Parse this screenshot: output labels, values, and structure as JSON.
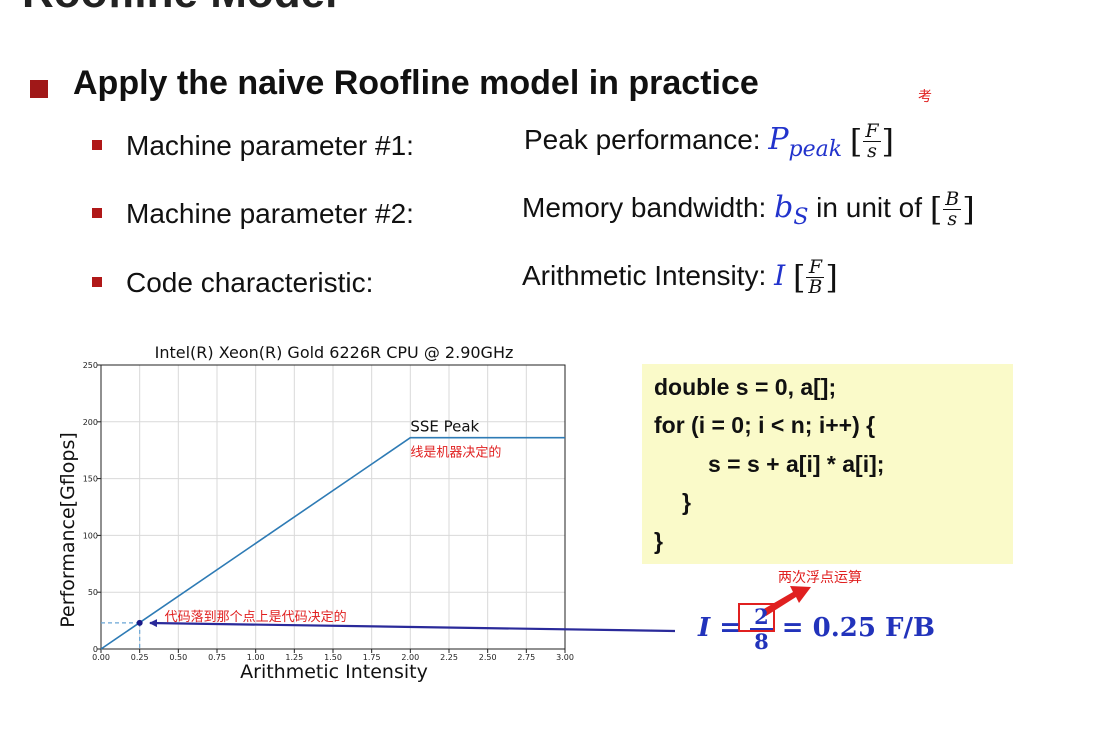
{
  "slide": {
    "title_fragment": "Roofline Model",
    "heading": "Apply the naive Roofline model in practice",
    "kao_mark": "考"
  },
  "params": [
    {
      "label": "Machine parameter #1:",
      "desc_prefix": "Peak performance: ",
      "symbol_base": "P",
      "symbol_sub": "peak",
      "unit_num": "F",
      "unit_den": "s",
      "desc_mid": " "
    },
    {
      "label": "Machine parameter #2:",
      "desc_prefix": "Memory bandwidth: ",
      "symbol_base": "b",
      "symbol_sub": "S",
      "desc_mid": " in unit of ",
      "unit_num": "B",
      "unit_den": "s"
    },
    {
      "label": "Code characteristic:",
      "desc_prefix": "Arithmetic Intensity: ",
      "symbol_base": "I",
      "symbol_sub": "",
      "unit_num": "F",
      "unit_den": "B",
      "desc_mid": " "
    }
  ],
  "chart_data": {
    "type": "line",
    "title": "Intel(R) Xeon(R) Gold 6226R CPU @ 2.90GHz",
    "xlabel": "Arithmetic Intensity",
    "ylabel": "Performance[Gflops]",
    "xlim": [
      0,
      3.0
    ],
    "ylim": [
      0,
      250
    ],
    "xticks": [
      "0.00",
      "0.25",
      "0.50",
      "0.75",
      "1.00",
      "1.25",
      "1.50",
      "1.75",
      "2.00",
      "2.25",
      "2.50",
      "2.75",
      "3.00"
    ],
    "yticks": [
      "0",
      "50",
      "100",
      "150",
      "200",
      "250"
    ],
    "grid": true,
    "series": [
      {
        "values": [
          [
            0,
            0
          ],
          [
            2.0,
            186
          ],
          [
            3.0,
            186
          ]
        ],
        "color": "#2e7bb5"
      }
    ],
    "ridge_label": "SSE Peak",
    "ridge_annotation": "线是机器决定的",
    "code_point": {
      "x": 0.25,
      "y": 23
    },
    "code_point_annotation": "代码落到那个点上是代码决定的"
  },
  "code": {
    "lines": [
      "double s = 0,  a[];",
      "for (i = 0; i < n; i++) {",
      "s = s + a[i] * a[i];",
      "}",
      "}"
    ]
  },
  "formula": {
    "lhs": "I",
    "eq1": "=",
    "num": "2",
    "den": "8",
    "eq2": "=",
    "rhs": "0.25 F/B",
    "annotation": "两次浮点运算"
  },
  "colors": {
    "accent_red": "#e02020",
    "symbol_blue": "#2233cc",
    "arrow_navy": "#2a2a9a",
    "line_blue": "#2e7bb5",
    "code_bg": "#fafac9"
  }
}
